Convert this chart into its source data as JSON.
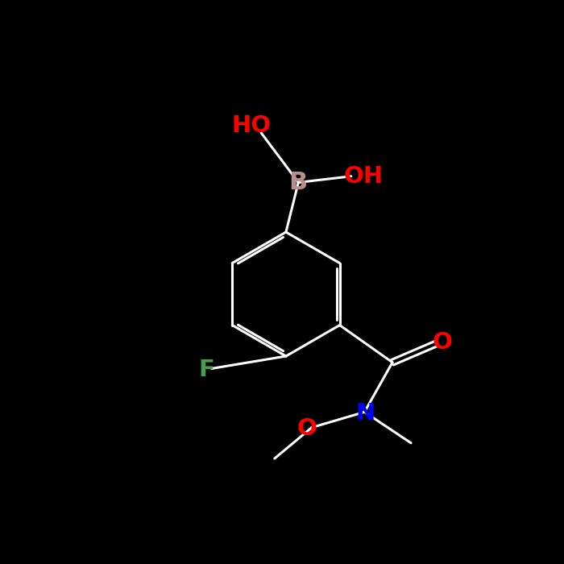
{
  "bg_color": "#000000",
  "bond_color": "#ffffff",
  "atom_colors": {
    "B": "#bc8f8f",
    "O": "#ff0000",
    "N": "#0000ff",
    "F": "#4a9e4a",
    "C": "#ffffff"
  },
  "lw": 2.2,
  "fontsize": 20
}
